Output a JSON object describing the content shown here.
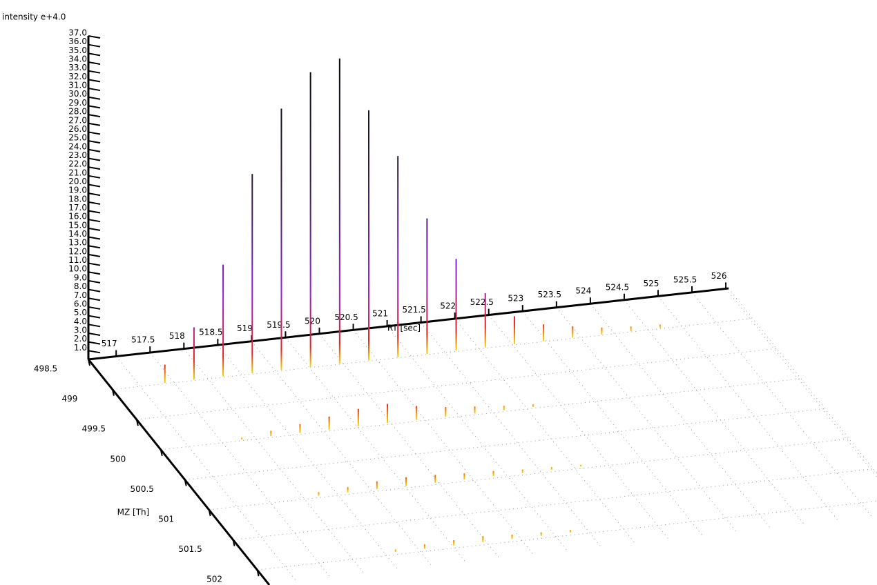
{
  "chart_data": {
    "type": "spectrum3d",
    "ylabel": "intensity e+4.0",
    "xlabel": "RT [sec]",
    "zlabel": "MZ [Th]",
    "xlim": [
      516.59,
      526.04
    ],
    "xticks": [
      517,
      517.5,
      518,
      518.5,
      519,
      519.5,
      520,
      520.5,
      521,
      521.5,
      522,
      522.5,
      523,
      523.5,
      524,
      524.5,
      525,
      525.5,
      526
    ],
    "zlim": [
      498.5,
      502.25
    ],
    "zticks": [
      498.5,
      499,
      499.5,
      500,
      500.5,
      501,
      501.5,
      502
    ],
    "ylim": [
      0,
      37
    ],
    "yticks": [
      {
        "value": 1,
        "label": "1.0"
      },
      {
        "value": 2,
        "label": "2.0"
      },
      {
        "value": 3,
        "label": "3.0"
      },
      {
        "value": 4,
        "label": "4.0"
      },
      {
        "value": 5,
        "label": "5.0"
      },
      {
        "value": 6,
        "label": "6.0"
      },
      {
        "value": 7,
        "label": "7.0"
      },
      {
        "value": 8,
        "label": "8.0"
      },
      {
        "value": 9,
        "label": "9.0"
      },
      {
        "value": 10,
        "label": "10.0"
      },
      {
        "value": 11,
        "label": "11.0"
      },
      {
        "value": 12,
        "label": "12.0"
      },
      {
        "value": 13,
        "label": "13.0"
      },
      {
        "value": 14,
        "label": "14.0"
      },
      {
        "value": 15,
        "label": "15.0"
      },
      {
        "value": 16,
        "label": "16.0"
      },
      {
        "value": 17,
        "label": "17.0"
      },
      {
        "value": 18,
        "label": "18.0"
      },
      {
        "value": 19,
        "label": "19.0"
      },
      {
        "value": 20,
        "label": "20.0"
      },
      {
        "value": 21,
        "label": "21.0"
      },
      {
        "value": 22,
        "label": "22.0"
      },
      {
        "value": 23,
        "label": "23.0"
      },
      {
        "value": 24,
        "label": "24.0"
      },
      {
        "value": 25,
        "label": "25.0"
      },
      {
        "value": 26,
        "label": "26.0"
      },
      {
        "value": 27,
        "label": "27.0"
      },
      {
        "value": 28,
        "label": "28.0"
      },
      {
        "value": 29,
        "label": "29.0"
      },
      {
        "value": 30,
        "label": "30.0"
      },
      {
        "value": 31,
        "label": "31.0"
      },
      {
        "value": 32,
        "label": "32.0"
      },
      {
        "value": 33,
        "label": "33.0"
      },
      {
        "value": 34,
        "label": "34.0"
      },
      {
        "value": 35,
        "label": "35.0"
      },
      {
        "value": 36,
        "label": "36.0"
      },
      {
        "value": 37,
        "label": "37.0"
      }
    ],
    "grid": true,
    "colors": [
      "#ffd700",
      "#e82020",
      "#9020e0",
      "#302040",
      "#000000"
    ],
    "series": [
      {
        "z": 498.99,
        "x": [
          517.37,
          517.8,
          518.23,
          518.66,
          519.09,
          519.52,
          519.95,
          520.38,
          520.81,
          521.24,
          521.67,
          522.1,
          522.53,
          522.96,
          523.39,
          523.82,
          524.25,
          524.68
        ],
        "values": [
          2.1,
          6.0,
          12.8,
          22.8,
          29.9,
          33.7,
          34.9,
          28.6,
          23.0,
          15.5,
          10.5,
          6.2,
          3.2,
          1.9,
          1.3,
          0.8,
          0.55,
          0.4
        ]
      },
      {
        "z": 499.98,
        "x": [
          517.8,
          518.23,
          518.66,
          519.09,
          519.52,
          519.95,
          520.38,
          520.81,
          521.24,
          521.67,
          522.1
        ],
        "values": [
          0.2,
          0.6,
          1.0,
          1.5,
          2.0,
          2.2,
          1.6,
          1.1,
          0.8,
          0.5,
          0.3
        ]
      },
      {
        "z": 500.97,
        "x": [
          518.23,
          518.66,
          519.09,
          519.52,
          519.95,
          520.38,
          520.81,
          521.24,
          521.67,
          522.1
        ],
        "values": [
          0.4,
          0.6,
          0.9,
          1.0,
          0.9,
          0.7,
          0.6,
          0.4,
          0.3,
          0.2
        ]
      },
      {
        "z": 501.96,
        "x": [
          518.66,
          519.09,
          519.52,
          519.95,
          520.38,
          520.81,
          521.24
        ],
        "values": [
          0.3,
          0.5,
          0.6,
          0.7,
          0.5,
          0.4,
          0.3
        ]
      }
    ]
  }
}
